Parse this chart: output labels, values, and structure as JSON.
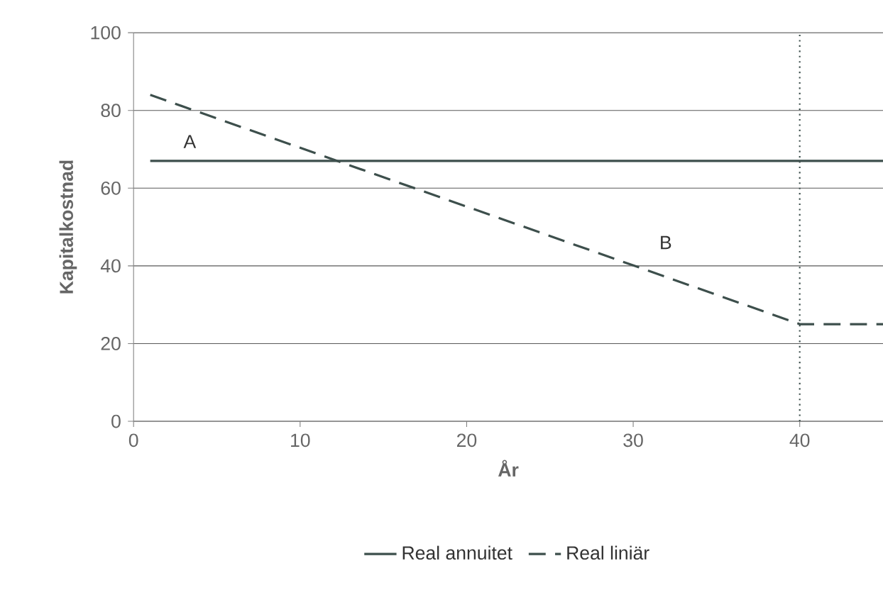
{
  "chart_data": {
    "type": "line",
    "xlabel": "År",
    "ylabel": "Kapitalkostnad",
    "x": [
      1,
      45
    ],
    "series": [
      {
        "name": "Real annuitet",
        "color": "#3d4f4c",
        "line_style": "solid",
        "values": [
          67,
          67
        ]
      },
      {
        "name": "Real liniär",
        "color": "#3d4f4c",
        "line_style": "dashed",
        "x": [
          1,
          40,
          45
        ],
        "values": [
          84,
          25,
          25
        ]
      }
    ],
    "xlim": [
      0,
      45
    ],
    "ylim": [
      0,
      100
    ],
    "xticks": [
      0,
      10,
      20,
      30,
      40
    ],
    "yticks": [
      0,
      20,
      40,
      60,
      80,
      100
    ],
    "grid": "y",
    "legend": "bottom",
    "marker": "none",
    "ref_lines": [
      {
        "axis": "x",
        "value": 40,
        "line_style": "dotted",
        "color": "#3d4f4c"
      }
    ],
    "annotations": [
      "A",
      "B"
    ]
  }
}
